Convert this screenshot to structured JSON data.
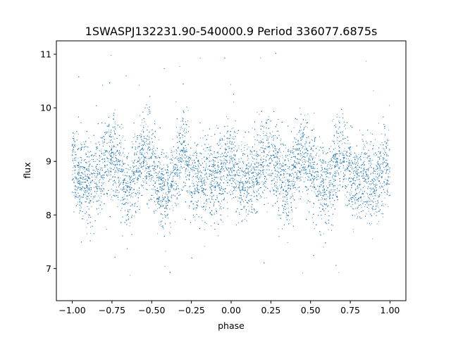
{
  "chart_data": {
    "type": "scatter",
    "title": "1SWASPJ132231.90-540000.9 Period 336077.6875s",
    "xlabel": "phase",
    "ylabel": "flux",
    "xlim": [
      -1.1,
      1.1
    ],
    "ylim": [
      6.4,
      11.25
    ],
    "xticks": [
      -1.0,
      -0.75,
      -0.5,
      -0.25,
      0.0,
      0.25,
      0.5,
      0.75,
      1.0
    ],
    "xtick_labels": [
      "−1.00",
      "−0.75",
      "−0.50",
      "−0.25",
      "0.00",
      "0.25",
      "0.50",
      "0.75",
      "1.00"
    ],
    "yticks": [
      7,
      8,
      9,
      10,
      11
    ],
    "ytick_labels": [
      "7",
      "8",
      "9",
      "10",
      "11"
    ],
    "grid": false,
    "legend": "none",
    "marker_color": "#1f77b4",
    "series": [
      {
        "x_range": [
          -1.0,
          1.0
        ],
        "folded": true,
        "trend_x": [
          0.0,
          0.05,
          0.1,
          0.15,
          0.2,
          0.25,
          0.3,
          0.35,
          0.4,
          0.45,
          0.5,
          0.55,
          0.6,
          0.65,
          0.7,
          0.75,
          0.8,
          0.85,
          0.9,
          0.95,
          1.0
        ],
        "trend_y": [
          9.0,
          8.65,
          8.6,
          8.7,
          9.0,
          9.1,
          8.9,
          8.45,
          8.85,
          9.15,
          8.9,
          8.6,
          8.4,
          8.9,
          9.2,
          8.7,
          8.6,
          8.75,
          8.6,
          8.8,
          9.0
        ],
        "scatter_sd": 0.38,
        "outlier_range": [
          6.6,
          11.05
        ]
      }
    ]
  }
}
